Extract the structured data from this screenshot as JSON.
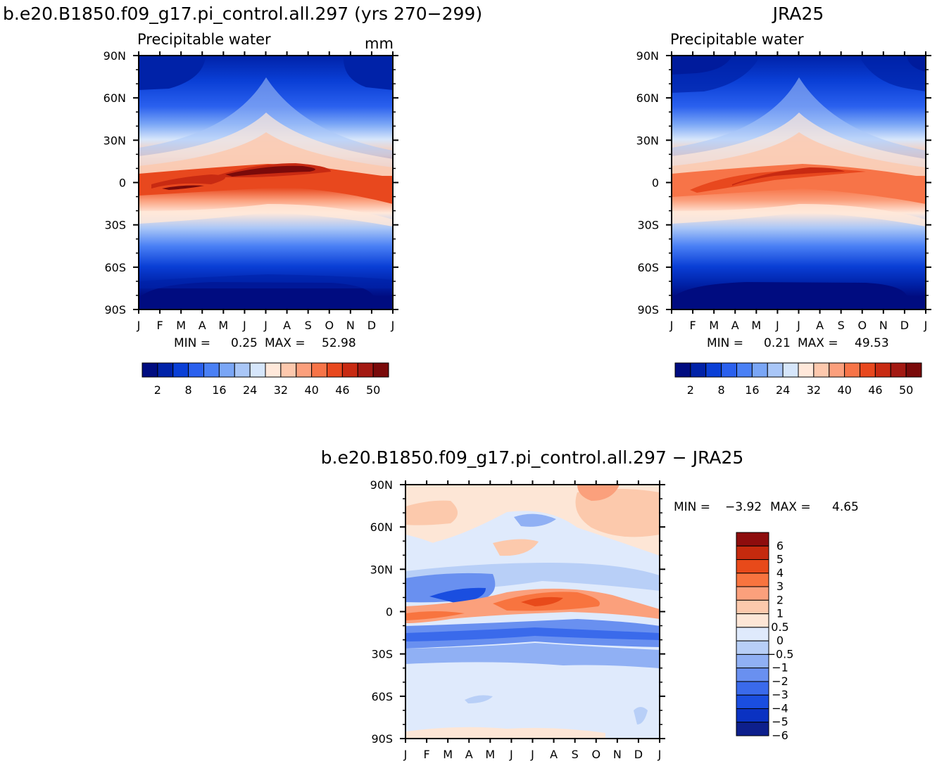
{
  "figure": {
    "palette_abs": [
      "#000c80",
      "#0022a8",
      "#0a3fd6",
      "#2a60ee",
      "#4a80f5",
      "#7aa6f6",
      "#a9c6f7",
      "#d6e6fb",
      "#ffe8da",
      "#fdc8ad",
      "#fb9f7c",
      "#f77448",
      "#e8481e",
      "#c82a12",
      "#a31912",
      "#7a0a0a"
    ],
    "palette_diff": [
      "#0d1f8c",
      "#0a32c2",
      "#1a4ee0",
      "#3a6aeb",
      "#6990f0",
      "#90b0f4",
      "#b8cff7",
      "#dfeafc",
      "#fde6d6",
      "#fcc9ac",
      "#fba07c",
      "#f8743f",
      "#e84a1a",
      "#c52a0e",
      "#8e0d0d"
    ]
  },
  "chart_data": [
    {
      "type": "heatmap",
      "title": "b.e20.B1850.f09_g17.pi_control.all.297 (yrs 270−299)",
      "subtitle": "Precipitable water",
      "units": "mm",
      "x": [
        "J",
        "F",
        "M",
        "A",
        "M",
        "J",
        "J",
        "A",
        "S",
        "O",
        "N",
        "D",
        "J"
      ],
      "y_ticks": [
        "90N",
        "60N",
        "30N",
        "0",
        "30S",
        "60S",
        "90S"
      ],
      "ylim": [
        -90,
        90
      ],
      "stats": {
        "min_label": "MIN =",
        "min": "0.25",
        "max_label": "MAX =",
        "max": "52.98"
      },
      "colorbar": {
        "levels": [
          2,
          5,
          8,
          12,
          16,
          20,
          24,
          28,
          32,
          36,
          40,
          43,
          46,
          48,
          50
        ],
        "tick_labels": [
          "2",
          "8",
          "16",
          "24",
          "32",
          "40",
          "46",
          "50"
        ]
      },
      "data_summary": {
        "equator_peak_month": "Jul-Aug",
        "equator_peak_value": 52.98,
        "polar_min_value": 0.25
      }
    },
    {
      "type": "heatmap",
      "title": "JRA25",
      "subtitle": "Precipitable water",
      "x": [
        "J",
        "F",
        "M",
        "A",
        "M",
        "J",
        "J",
        "A",
        "S",
        "O",
        "N",
        "D",
        "J"
      ],
      "y_ticks": [
        "90N",
        "60N",
        "30N",
        "0",
        "30S",
        "60S",
        "90S"
      ],
      "ylim": [
        -90,
        90
      ],
      "stats": {
        "min_label": "MIN =",
        "min": "0.21",
        "max_label": "MAX =",
        "max": "49.53"
      },
      "colorbar": {
        "levels": [
          2,
          5,
          8,
          12,
          16,
          20,
          24,
          28,
          32,
          36,
          40,
          43,
          46,
          48,
          50
        ],
        "tick_labels": [
          "2",
          "8",
          "16",
          "24",
          "32",
          "40",
          "46",
          "50"
        ]
      },
      "data_summary": {
        "equator_peak_month": "Jul-Aug",
        "equator_peak_value": 49.53,
        "polar_min_value": 0.21
      }
    },
    {
      "type": "heatmap",
      "title": "b.e20.B1850.f09_g17.pi_control.all.297 − JRA25",
      "x": [
        "J",
        "F",
        "M",
        "A",
        "M",
        "J",
        "J",
        "A",
        "S",
        "O",
        "N",
        "D",
        "J"
      ],
      "y_ticks": [
        "90N",
        "60N",
        "30N",
        "0",
        "30S",
        "60S",
        "90S"
      ],
      "ylim": [
        -90,
        90
      ],
      "stats": {
        "min_label": "MIN =",
        "min": "−3.92",
        "max_label": "MAX =",
        "max": "4.65"
      },
      "colorbar": {
        "levels": [
          -6,
          -5,
          -4,
          -3,
          -2,
          -1,
          -0.5,
          0,
          0.5,
          1,
          2,
          3,
          4,
          5,
          6
        ],
        "tick_labels": [
          "6",
          "5",
          "4",
          "3",
          "2",
          "1",
          "0.5",
          "0",
          "−0.5",
          "−1",
          "−2",
          "−3",
          "−4",
          "−5",
          "−6"
        ]
      },
      "data_summary": {
        "min": -3.92,
        "max": 4.65
      }
    }
  ]
}
